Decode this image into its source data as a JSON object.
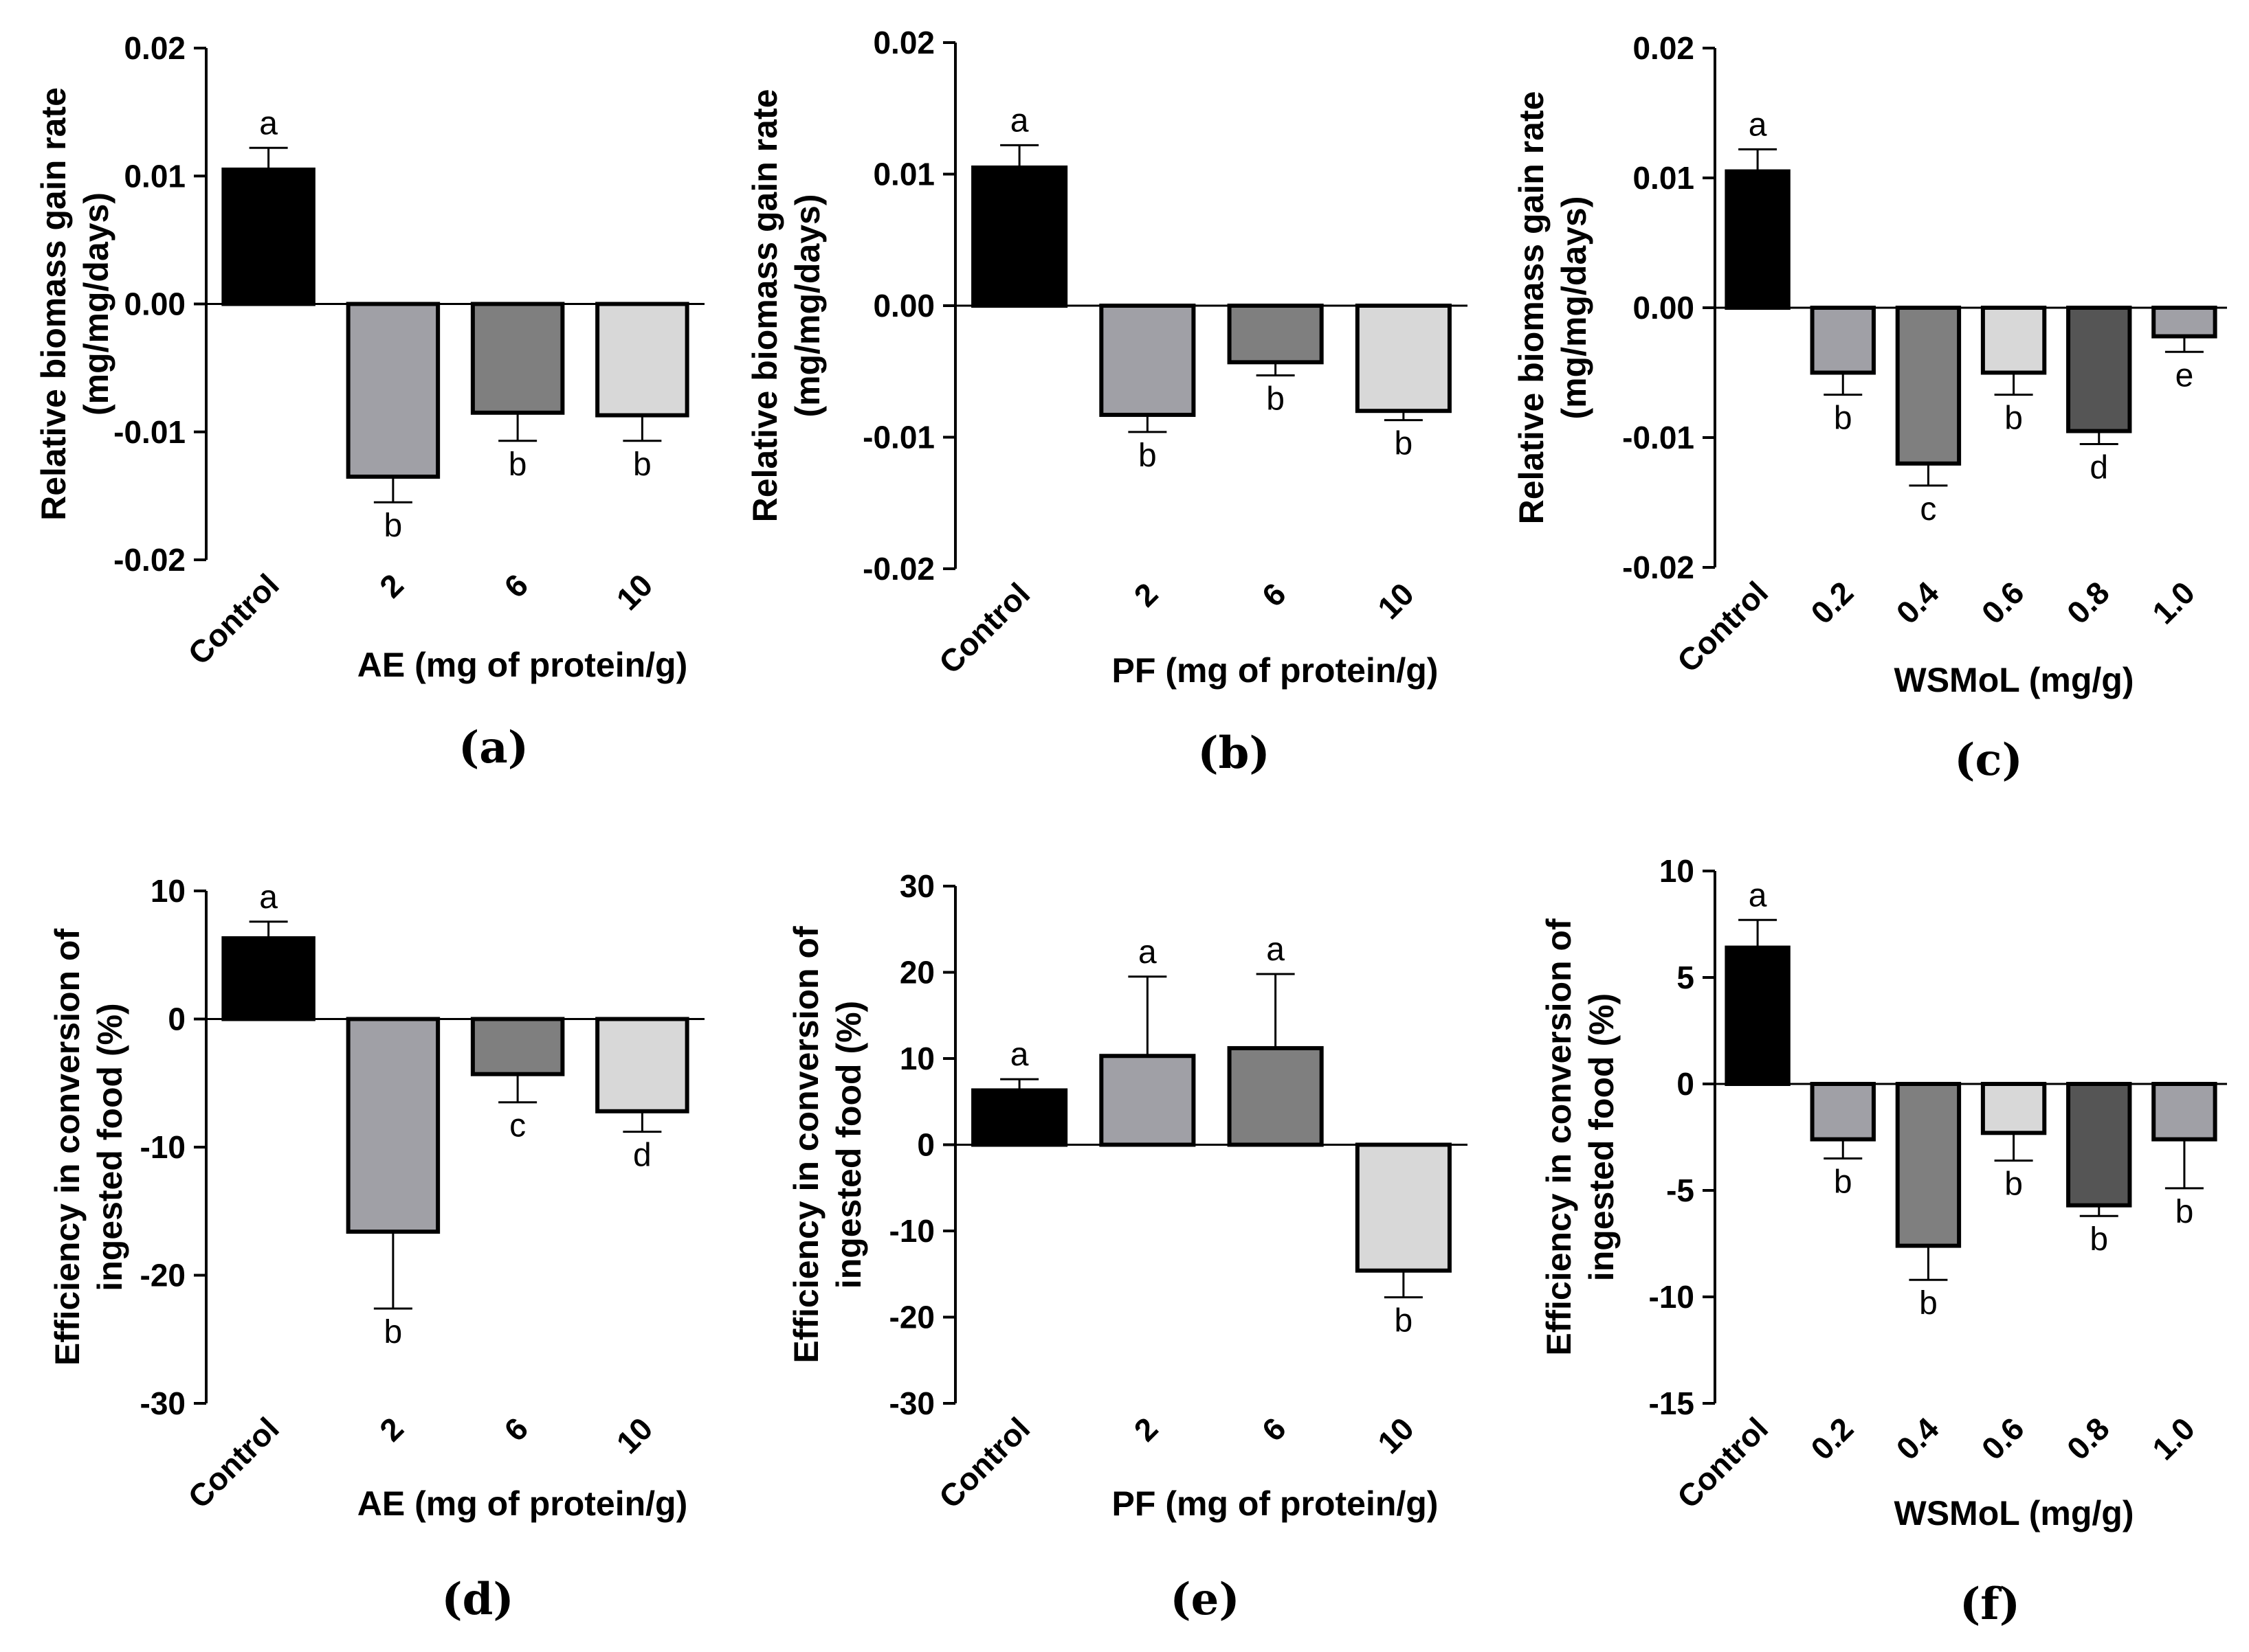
{
  "chart_data": [
    {
      "type": "bar",
      "panel": "(a)",
      "xlabel": "AE (mg of protein/g)",
      "ylabel": [
        "Relative biomass gain rate",
        "(mg/mg/days)"
      ],
      "categories": [
        "Control",
        "2",
        "6",
        "10"
      ],
      "values": [
        0.0105,
        -0.0135,
        -0.0085,
        -0.0087
      ],
      "errors": [
        0.0017,
        0.002,
        0.0022,
        0.002
      ],
      "letters": [
        "a",
        "b",
        "b",
        "b"
      ],
      "colors": [
        "#000000",
        "#a0a0a6",
        "#7f7f7f",
        "#d8d8d8"
      ],
      "ylim": [
        -0.02,
        0.02
      ],
      "yticks": [
        -0.02,
        -0.01,
        0.0,
        0.01,
        0.02
      ],
      "ytick_labels": [
        "-0.02",
        "-0.01",
        "0.00",
        "0.01",
        "0.02"
      ]
    },
    {
      "type": "bar",
      "panel": "(b)",
      "xlabel": "PF (mg of protein/g)",
      "ylabel": [
        "Relative biomass gain rate",
        "(mg/mg/days)"
      ],
      "categories": [
        "Control",
        "2",
        "6",
        "10"
      ],
      "values": [
        0.0105,
        -0.0083,
        -0.0043,
        -0.008
      ],
      "errors": [
        0.0017,
        0.0013,
        0.001,
        0.0007
      ],
      "letters": [
        "a",
        "b",
        "b",
        "b"
      ],
      "colors": [
        "#000000",
        "#a0a0a6",
        "#7f7f7f",
        "#d8d8d8"
      ],
      "ylim": [
        -0.02,
        0.02
      ],
      "yticks": [
        -0.02,
        -0.01,
        0.0,
        0.01,
        0.02
      ],
      "ytick_labels": [
        "-0.02",
        "-0.01",
        "0.00",
        "0.01",
        "0.02"
      ]
    },
    {
      "type": "bar",
      "panel": "(c)",
      "xlabel": "WSMoL (mg/g)",
      "ylabel": [
        "Relative biomass gain rate",
        "(mg/mg/days)"
      ],
      "categories": [
        "Control",
        "0.2",
        "0.4",
        "0.6",
        "0.8",
        "1.0"
      ],
      "values": [
        0.0105,
        -0.005,
        -0.012,
        -0.005,
        -0.0095,
        -0.0022
      ],
      "errors": [
        0.0017,
        0.0017,
        0.0017,
        0.0017,
        0.001,
        0.0012
      ],
      "letters": [
        "a",
        "b",
        "c",
        "b",
        "d",
        "e"
      ],
      "colors": [
        "#000000",
        "#a0a0a6",
        "#7f7f7f",
        "#d8d8d8",
        "#555555",
        "#a0a0a6"
      ],
      "ylim": [
        -0.02,
        0.02
      ],
      "yticks": [
        -0.02,
        -0.01,
        0.0,
        0.01,
        0.02
      ],
      "ytick_labels": [
        "-0.02",
        "-0.01",
        "0.00",
        "0.01",
        "0.02"
      ]
    },
    {
      "type": "bar",
      "panel": "(d)",
      "xlabel": "AE (mg of protein/g)",
      "ylabel": [
        "Efficiency in conversion of",
        "ingested food (%)"
      ],
      "categories": [
        "Control",
        "2",
        "6",
        "10"
      ],
      "values": [
        6.3,
        -16.6,
        -4.3,
        -7.2
      ],
      "errors": [
        1.3,
        6.0,
        2.2,
        1.6
      ],
      "letters": [
        "a",
        "b",
        "c",
        "d"
      ],
      "colors": [
        "#000000",
        "#a0a0a6",
        "#7f7f7f",
        "#d8d8d8"
      ],
      "ylim": [
        -30,
        10
      ],
      "yticks": [
        -30,
        -20,
        -10,
        0,
        10
      ],
      "ytick_labels": [
        "-30",
        "-20",
        "-10",
        "0",
        "10"
      ]
    },
    {
      "type": "bar",
      "panel": "(e)",
      "xlabel": "PF (mg of protein/g)",
      "ylabel": [
        "Efficiency in conversion of",
        "ingested food (%)"
      ],
      "categories": [
        "Control",
        "2",
        "6",
        "10"
      ],
      "values": [
        6.3,
        10.3,
        11.2,
        -14.6
      ],
      "errors": [
        1.3,
        9.2,
        8.6,
        3.1
      ],
      "letters": [
        "a",
        "a",
        "a",
        "b"
      ],
      "colors": [
        "#000000",
        "#a0a0a6",
        "#7f7f7f",
        "#d8d8d8"
      ],
      "ylim": [
        -30,
        30
      ],
      "yticks": [
        -30,
        -20,
        -10,
        0,
        10,
        20,
        30
      ],
      "ytick_labels": [
        "-30",
        "-20",
        "-10",
        "0",
        "10",
        "20",
        "30"
      ]
    },
    {
      "type": "bar",
      "panel": "(f)",
      "xlabel": "WSMoL (mg/g)",
      "ylabel": [
        "Efficiency in conversion of",
        "ingested food (%)"
      ],
      "categories": [
        "Control",
        "0.2",
        "0.4",
        "0.6",
        "0.8",
        "1.0"
      ],
      "values": [
        6.4,
        -2.6,
        -7.6,
        -2.3,
        -5.7,
        -2.6
      ],
      "errors": [
        1.3,
        0.9,
        1.6,
        1.3,
        0.5,
        2.3
      ],
      "letters": [
        "a",
        "b",
        "b",
        "b",
        "b",
        "b"
      ],
      "colors": [
        "#000000",
        "#a0a0a6",
        "#7f7f7f",
        "#d8d8d8",
        "#555555",
        "#a0a0a6"
      ],
      "ylim": [
        -15,
        10
      ],
      "yticks": [
        -15,
        -10,
        -5,
        0,
        5,
        10
      ],
      "ytick_labels": [
        "-15",
        "-10",
        "-5",
        "0",
        "5",
        "10"
      ]
    }
  ]
}
